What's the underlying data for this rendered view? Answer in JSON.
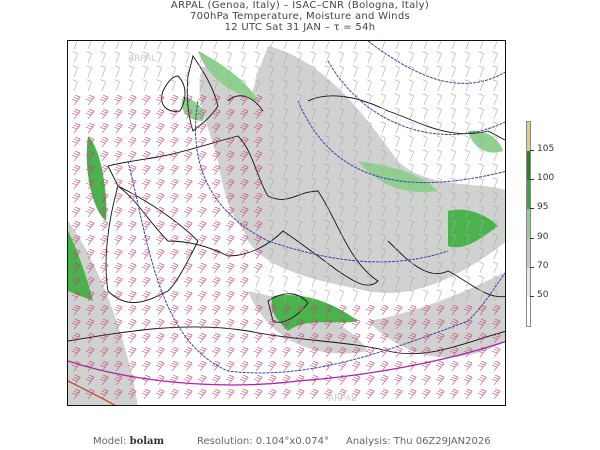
{
  "header": {
    "line1": "ARPAL (Genoa, Italy)  –  ISAC–CNR (Bologna, Italy)",
    "line2": "700hPa Temperature, Moisture and Winds",
    "line3": "12 UTC Sat 31 JAN  –  τ = 54h"
  },
  "map": {
    "watermark": "ARPAL",
    "colors": {
      "coast": "#111111",
      "isotherm_cold": "#3344aa",
      "isotherm_warm": "#aa22aa",
      "barb_strong": "#c2407a",
      "barb_weak": "#aaaaaa",
      "moist_gray": "#c8cac8",
      "moist_green": "#33aa33"
    }
  },
  "colorbar": {
    "labels": [
      "105",
      "100",
      "95",
      "90",
      "70",
      "50"
    ],
    "colors": [
      "#e0d070",
      "#1e8a1e",
      "#33aa33",
      "#8fd08f",
      "#c8c8c8",
      "#e6e6e6",
      "#ffffff"
    ]
  },
  "footer": {
    "model_label": "Model:",
    "model_value": "bolam",
    "resolution": "Resolution: 0.104°x0.074°",
    "analysis": "Analysis: Thu 06Z29JAN2026"
  }
}
